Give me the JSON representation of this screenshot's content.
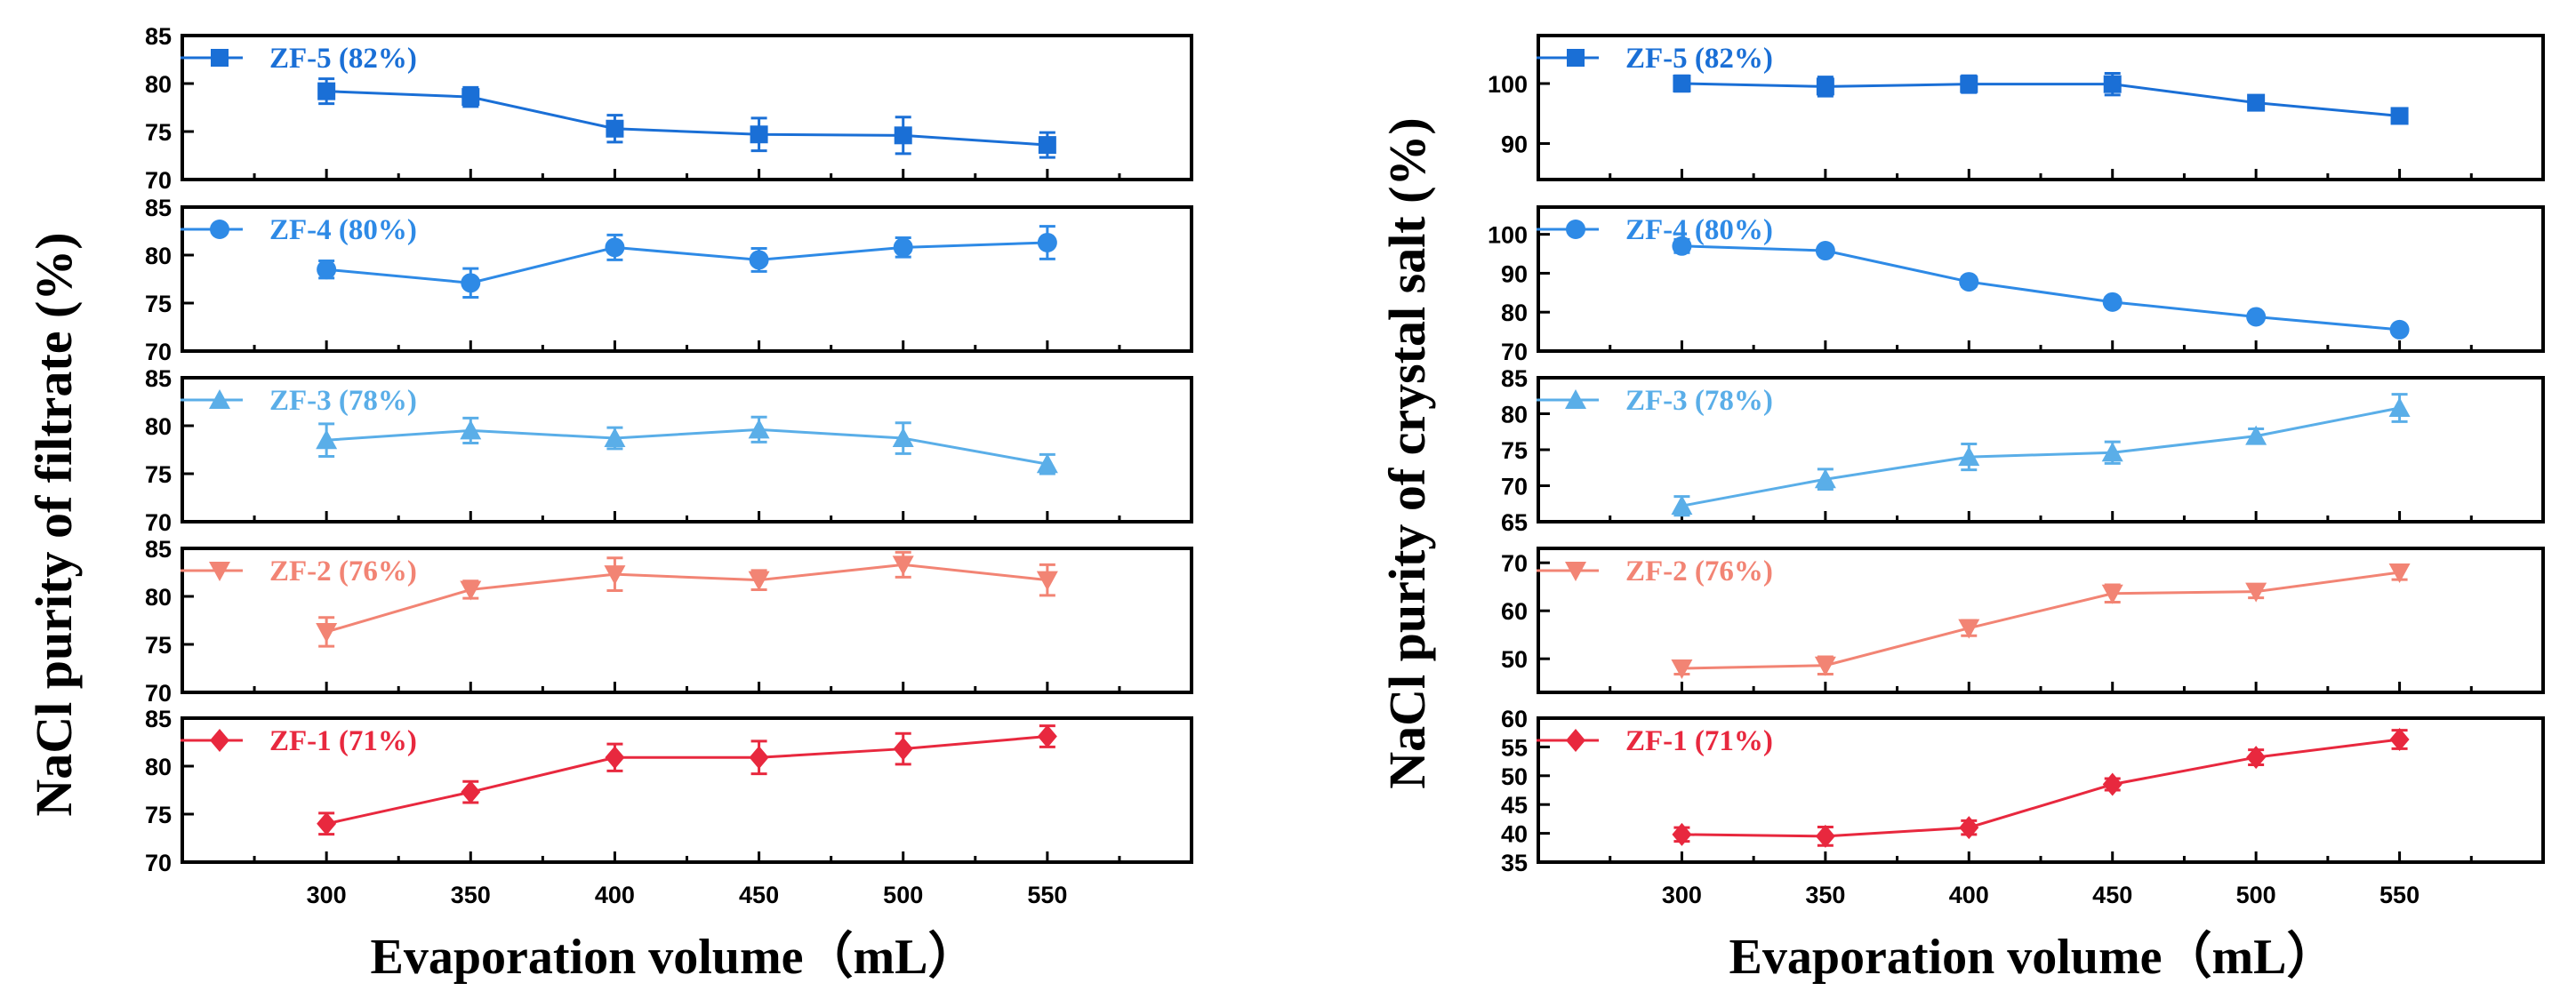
{
  "chart_data": [
    {
      "type": "line",
      "title": "",
      "xlabel": "Evaporation volume（mL）",
      "ylabel": "NaCl purity of  filtrate (%)",
      "x": [
        300,
        350,
        400,
        450,
        500,
        550
      ],
      "x_ticks": [
        300,
        350,
        400,
        450,
        500,
        550
      ],
      "xlim": [
        250,
        600
      ],
      "panels": [
        {
          "name": "ZF-5 (82%)",
          "marker": "square",
          "color": "#1a6fd6",
          "ylim": [
            70,
            85
          ],
          "y_ticks": [
            70,
            75,
            80,
            85
          ],
          "values": [
            79.2,
            78.6,
            75.3,
            74.7,
            74.6,
            73.6
          ],
          "errors": [
            1.3,
            1.0,
            1.4,
            1.7,
            1.9,
            1.3
          ]
        },
        {
          "name": "ZF-4 (80%)",
          "marker": "circle",
          "color": "#2e8ae6",
          "ylim": [
            70,
            85
          ],
          "y_ticks": [
            70,
            75,
            80,
            85
          ],
          "values": [
            78.5,
            77.1,
            80.8,
            79.5,
            80.8,
            81.3
          ],
          "errors": [
            0.9,
            1.5,
            1.3,
            1.2,
            1.0,
            1.7
          ]
        },
        {
          "name": "ZF-3 (78%)",
          "marker": "triangle-up",
          "color": "#5aaee8",
          "ylim": [
            70,
            85
          ],
          "y_ticks": [
            70,
            75,
            80,
            85
          ],
          "values": [
            78.5,
            79.5,
            78.7,
            79.6,
            78.7,
            76.0
          ],
          "errors": [
            1.7,
            1.3,
            1.1,
            1.3,
            1.6,
            1.0
          ]
        },
        {
          "name": "ZF-2 (76%)",
          "marker": "triangle-down",
          "color": "#f28474",
          "ylim": [
            70,
            85
          ],
          "y_ticks": [
            70,
            75,
            80,
            85
          ],
          "values": [
            76.3,
            80.7,
            82.3,
            81.7,
            83.3,
            81.7
          ],
          "errors": [
            1.5,
            0.9,
            1.7,
            1.0,
            1.3,
            1.6
          ]
        },
        {
          "name": "ZF-1 (71%)",
          "marker": "diamond",
          "color": "#e8283e",
          "ylim": [
            70,
            85
          ],
          "y_ticks": [
            70,
            75,
            80,
            85
          ],
          "values": [
            74.0,
            77.3,
            80.9,
            80.9,
            81.8,
            83.1
          ],
          "errors": [
            1.1,
            1.1,
            1.4,
            1.7,
            1.6,
            1.1
          ]
        }
      ]
    },
    {
      "type": "line",
      "title": "",
      "xlabel": "Evaporation volume（mL）",
      "ylabel": "NaCl purity of  crystal salt (%)",
      "x": [
        300,
        350,
        400,
        450,
        500,
        550
      ],
      "x_ticks": [
        300,
        350,
        400,
        450,
        500,
        550
      ],
      "xlim": [
        250,
        600
      ],
      "panels": [
        {
          "name": "ZF-5 (82%)",
          "marker": "square",
          "color": "#1a6fd6",
          "ylim": [
            84,
            108
          ],
          "y_ticks": [
            90,
            100
          ],
          "values": [
            100.0,
            99.5,
            99.9,
            99.9,
            96.8,
            94.6
          ],
          "errors": [
            1.3,
            1.6,
            1.4,
            1.8,
            1.1,
            1.2
          ]
        },
        {
          "name": "ZF-4 (80%)",
          "marker": "circle",
          "color": "#2e8ae6",
          "ylim": [
            70,
            107
          ],
          "y_ticks": [
            70,
            80,
            90,
            100
          ],
          "values": [
            97.0,
            95.8,
            87.8,
            82.6,
            78.8,
            75.5
          ],
          "errors": [
            1.7,
            0.8,
            1.2,
            1.2,
            1.2,
            0.9
          ]
        },
        {
          "name": "ZF-3 (78%)",
          "marker": "triangle-up",
          "color": "#5aaee8",
          "ylim": [
            65,
            85
          ],
          "y_ticks": [
            65,
            70,
            75,
            80,
            85
          ],
          "values": [
            67.2,
            70.9,
            74.0,
            74.6,
            76.9,
            80.8
          ],
          "errors": [
            1.3,
            1.4,
            1.8,
            1.5,
            1.0,
            1.9
          ]
        },
        {
          "name": "ZF-2 (76%)",
          "marker": "triangle-down",
          "color": "#f28474",
          "ylim": [
            43,
            73
          ],
          "y_ticks": [
            50,
            60,
            70
          ],
          "values": [
            48.0,
            48.6,
            56.4,
            63.6,
            64.0,
            68.0
          ],
          "errors": [
            1.2,
            1.8,
            1.6,
            1.8,
            1.3,
            1.5
          ]
        },
        {
          "name": "ZF-1 (71%)",
          "marker": "diamond",
          "color": "#e8283e",
          "ylim": [
            35,
            60
          ],
          "y_ticks": [
            35,
            40,
            45,
            50,
            55,
            60
          ],
          "values": [
            39.8,
            39.5,
            41.0,
            48.5,
            53.2,
            56.3
          ],
          "errors": [
            1.2,
            1.6,
            1.2,
            1.0,
            1.3,
            1.6
          ]
        }
      ]
    }
  ]
}
